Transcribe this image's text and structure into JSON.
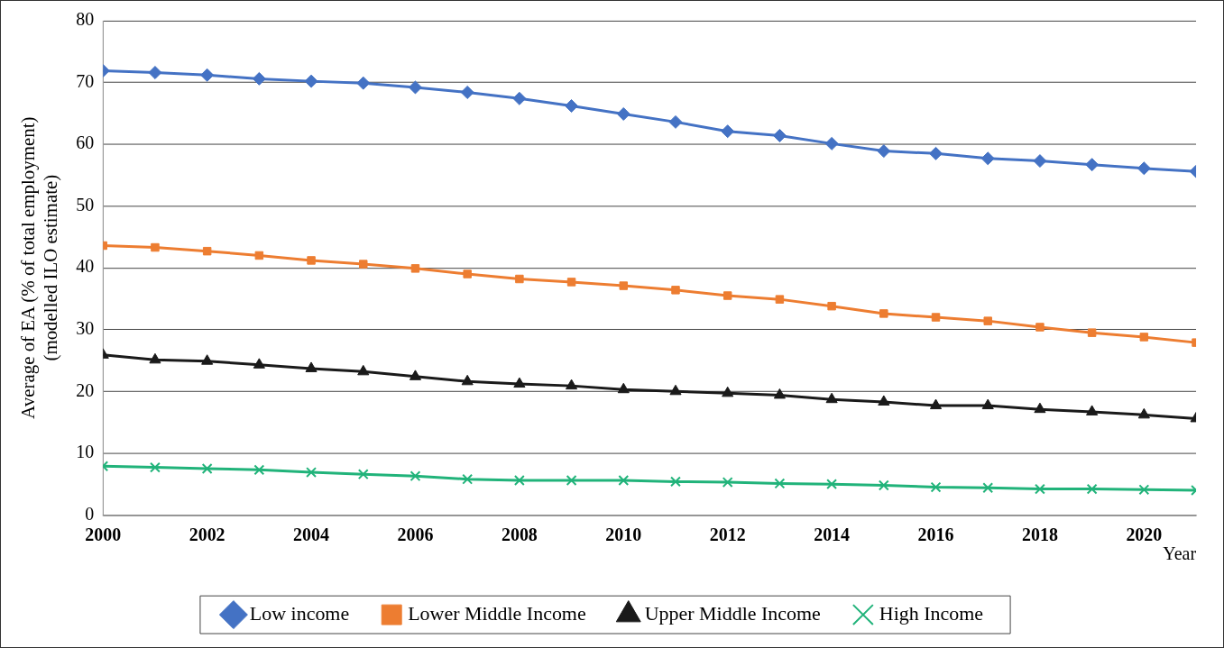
{
  "chart_data": {
    "type": "line",
    "ylabel": "Average of EA (% of total employment)\n(modelled ILO estimate)",
    "xlabel": "Year",
    "x": [
      2000,
      2001,
      2002,
      2003,
      2004,
      2005,
      2006,
      2007,
      2008,
      2009,
      2010,
      2011,
      2012,
      2013,
      2014,
      2015,
      2016,
      2017,
      2018,
      2019,
      2020,
      2021
    ],
    "xlim": [
      2000,
      2021
    ],
    "xticks": [
      2000,
      2002,
      2004,
      2006,
      2008,
      2010,
      2012,
      2014,
      2016,
      2018,
      2020
    ],
    "ylim": [
      0,
      80
    ],
    "yticks": [
      0,
      10,
      20,
      30,
      40,
      50,
      60,
      70,
      80
    ],
    "grid": "y",
    "legend": "bottom",
    "line_style": "solid",
    "series": [
      {
        "name": "Low income",
        "color": "#4472c4",
        "marker": "diamond",
        "values": [
          71.9,
          71.6,
          71.2,
          70.6,
          70.2,
          69.9,
          69.2,
          68.4,
          67.4,
          66.2,
          64.9,
          63.6,
          62.1,
          61.4,
          60.1,
          58.9,
          58.5,
          57.7,
          57.3,
          56.7,
          56.1,
          55.6
        ]
      },
      {
        "name": "Lower Middle Income",
        "color": "#ed7d31",
        "marker": "square",
        "values": [
          43.6,
          43.3,
          42.7,
          42.0,
          41.2,
          40.6,
          39.9,
          39.0,
          38.2,
          37.7,
          37.1,
          36.4,
          35.5,
          34.9,
          33.8,
          32.6,
          32.0,
          31.4,
          30.4,
          29.5,
          28.8,
          27.9
        ]
      },
      {
        "name": "Upper Middle Income",
        "color": "#1a1a1a",
        "marker": "triangle",
        "values": [
          25.9,
          25.1,
          24.9,
          24.3,
          23.7,
          23.2,
          22.4,
          21.6,
          21.2,
          20.9,
          20.3,
          20.0,
          19.7,
          19.4,
          18.7,
          18.3,
          17.7,
          17.7,
          17.1,
          16.7,
          16.2,
          15.6
        ]
      },
      {
        "name": "High Income",
        "color": "#21b37a",
        "marker": "cross",
        "values": [
          7.9,
          7.7,
          7.5,
          7.3,
          6.9,
          6.6,
          6.3,
          5.8,
          5.6,
          5.6,
          5.6,
          5.4,
          5.3,
          5.1,
          5.0,
          4.8,
          4.5,
          4.4,
          4.2,
          4.2,
          4.1,
          4.0
        ]
      }
    ]
  }
}
